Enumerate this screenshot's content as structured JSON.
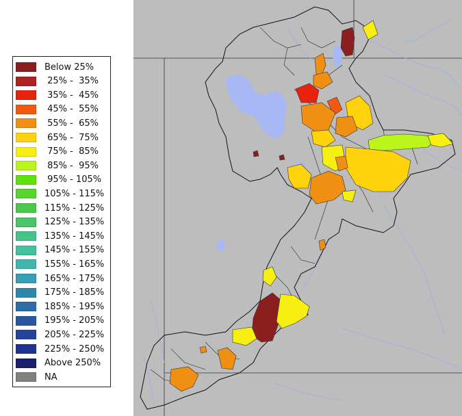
{
  "map": {
    "background_color": "#ffffff",
    "land_color": "#bdbdbd",
    "water_color": "#a8b8f5",
    "boundary_color": "#111111",
    "na_color": "#808080"
  },
  "legend": {
    "items": [
      {
        "label": "Below 25%",
        "color": "#8b1e1e"
      },
      {
        "label": " 25% -  35%",
        "color": "#b22222"
      },
      {
        "label": " 35% -  45%",
        "color": "#e8220d"
      },
      {
        "label": " 45% -  55%",
        "color": "#f35a0f"
      },
      {
        "label": " 55% -  65%",
        "color": "#ef8f14"
      },
      {
        "label": " 65% -  75%",
        "color": "#ffd20d"
      },
      {
        "label": " 75% -  85%",
        "color": "#f7ef12"
      },
      {
        "label": " 85% -  95%",
        "color": "#bcf51b"
      },
      {
        "label": " 95% - 105%",
        "color": "#5ee30d"
      },
      {
        "label": "105% - 115%",
        "color": "#55d62b"
      },
      {
        "label": "115% - 125%",
        "color": "#4cc94c"
      },
      {
        "label": "125% - 135%",
        "color": "#48c66a"
      },
      {
        "label": "135% - 145%",
        "color": "#45c48a"
      },
      {
        "label": "145% - 155%",
        "color": "#42c2a1"
      },
      {
        "label": "155% - 165%",
        "color": "#3fb7b0"
      },
      {
        "label": "165% - 175%",
        "color": "#369fb4"
      },
      {
        "label": "175% - 185%",
        "color": "#2f87ab"
      },
      {
        "label": "185% - 195%",
        "color": "#2c6fa6"
      },
      {
        "label": "195% - 205%",
        "color": "#2a569f"
      },
      {
        "label": "205% - 225%",
        "color": "#26429a"
      },
      {
        "label": "225% - 250%",
        "color": "#213590"
      },
      {
        "label": "Above 250%",
        "color": "#1b1f6e"
      },
      {
        "label": "NA",
        "color": "#808080"
      }
    ]
  }
}
